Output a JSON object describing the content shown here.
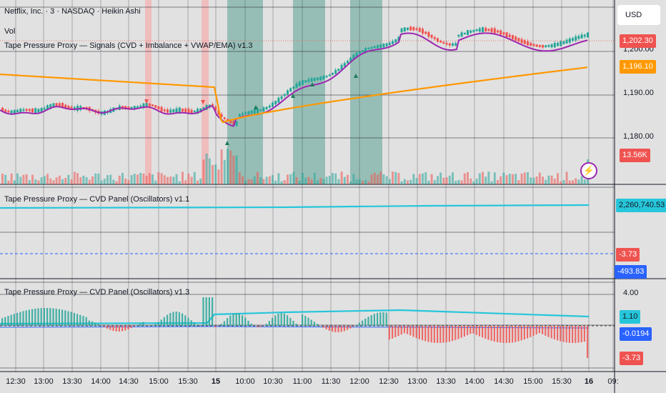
{
  "header": {
    "symbol_title": "Netflix, Inc. · 3 · NASDAQ · Heikin Ashi",
    "vol_label": "Vol",
    "indicator_signals": "Tape Pressure Proxy — Signals (CVD + Imbalance + VWAP/EMA) v1.3",
    "indicator_cvd_v11": "Tape Pressure Proxy — CVD Panel (Oscillators) v1.1",
    "indicator_cvd_v13": "Tape Pressure Proxy — CVD Panel (Oscillators) v1.3"
  },
  "currency": "USD",
  "price_axis": {
    "ticks": [
      "1,200.00",
      "1,190.00",
      "1,180.00"
    ],
    "price_tag": "1,202.30",
    "ema_tag": "1,196.10",
    "volume_tag": "13.56K"
  },
  "panel_cvd": {
    "value_tag": "2,260,740.53",
    "zero_tag": "-3.73",
    "osc_tag": "-493.83"
  },
  "panel_osc": {
    "tick_top": "4.00",
    "line_tag": "1.10",
    "histo_tag": "-0.0194",
    "low_tag": "-3.73"
  },
  "time_axis": [
    "12:30",
    "13:00",
    "13:30",
    "14:00",
    "14:30",
    "15:00",
    "15:30",
    "15",
    "10:00",
    "10:30",
    "11:00",
    "11:30",
    "12:00",
    "12:30",
    "13:00",
    "13:30",
    "14:00",
    "14:30",
    "15:00",
    "15:30",
    "16",
    "09:"
  ],
  "colors": {
    "bull": "#26a69a",
    "bear": "#ef5350",
    "vwap": "#9c27b0",
    "ema": "#ff9800",
    "cvd": "#26c6da",
    "shade_bull": "#8fbab1",
    "shade_bear": "#f2b9b9"
  },
  "icons": {
    "alert": "lightning-bolt-icon"
  }
}
